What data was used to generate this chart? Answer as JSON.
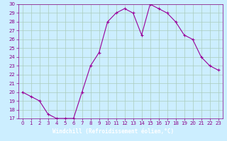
{
  "x": [
    0,
    1,
    2,
    3,
    4,
    5,
    6,
    7,
    8,
    9,
    10,
    11,
    12,
    13,
    14,
    15,
    16,
    17,
    18,
    19,
    20,
    21,
    22,
    23
  ],
  "y": [
    20,
    19.5,
    19,
    17.5,
    17,
    17,
    17,
    20,
    23,
    24.5,
    28,
    29,
    29.5,
    29,
    26.5,
    30,
    29.5,
    29,
    28,
    26.5,
    26,
    24,
    23,
    22.5
  ],
  "line_color": "#990099",
  "marker": "+",
  "bg_color": "#cceeff",
  "grid_color": "#aaccbb",
  "xlabel": "Windchill (Refroidissement éolien,°C)",
  "xlabel_color": "#ffffff",
  "xlabel_bg": "#880088",
  "ylim": [
    17,
    30
  ],
  "xlim": [
    -0.5,
    23.5
  ],
  "yticks": [
    17,
    18,
    19,
    20,
    21,
    22,
    23,
    24,
    25,
    26,
    27,
    28,
    29,
    30
  ],
  "xticks": [
    0,
    1,
    2,
    3,
    4,
    5,
    6,
    7,
    8,
    9,
    10,
    11,
    12,
    13,
    14,
    15,
    16,
    17,
    18,
    19,
    20,
    21,
    22,
    23
  ],
  "tick_color": "#880088",
  "axis_color": "#880088",
  "tick_labelsize": 5,
  "xlabel_fontsize": 5.5
}
